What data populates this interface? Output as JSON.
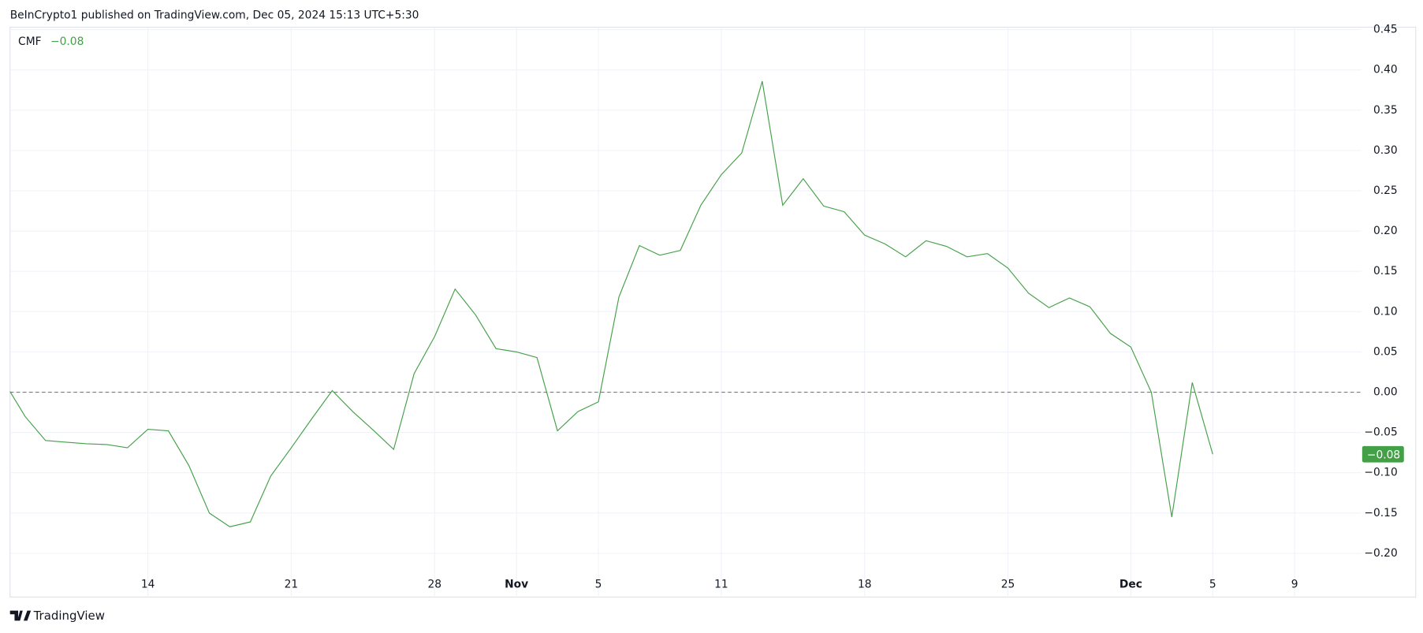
{
  "header": {
    "text": "BeInCrypto1 published on TradingView.com, Dec 05, 2024 15:13 UTC+5:30"
  },
  "footer": {
    "brand": "TradingView"
  },
  "chart_data": {
    "type": "line",
    "x": [
      "10-07",
      "10-08",
      "10-09",
      "10-10",
      "10-11",
      "10-12",
      "10-13",
      "10-14",
      "10-15",
      "10-16",
      "10-17",
      "10-18",
      "10-19",
      "10-20",
      "10-21",
      "10-22",
      "10-23",
      "10-24",
      "10-25",
      "10-26",
      "10-27",
      "10-28",
      "10-29",
      "10-30",
      "10-31",
      "11-01",
      "11-02",
      "11-03",
      "11-04",
      "11-05",
      "11-06",
      "11-07",
      "11-08",
      "11-09",
      "11-10",
      "11-11",
      "11-12",
      "11-13",
      "11-14",
      "11-15",
      "11-16",
      "11-17",
      "11-18",
      "11-19",
      "11-20",
      "11-21",
      "11-22",
      "11-23",
      "11-24",
      "11-25",
      "11-26",
      "11-27",
      "11-28",
      "11-29",
      "11-30",
      "12-01",
      "12-02",
      "12-03",
      "12-04",
      "12-05"
    ],
    "series": [
      {
        "name": "CMF",
        "color": "#43a047",
        "last_label": "−0.08",
        "values": [
          0.012,
          -0.03,
          -0.06,
          -0.062,
          -0.064,
          -0.065,
          -0.069,
          -0.046,
          -0.048,
          -0.091,
          -0.15,
          -0.167,
          -0.161,
          -0.104,
          -0.069,
          -0.033,
          0.002,
          -0.024,
          -0.047,
          -0.071,
          0.023,
          0.069,
          0.128,
          0.096,
          0.054,
          0.05,
          0.043,
          -0.048,
          -0.024,
          -0.012,
          0.118,
          0.182,
          0.17,
          0.176,
          0.232,
          0.27,
          0.297,
          0.386,
          0.232,
          0.265,
          0.231,
          0.224,
          0.195,
          0.184,
          0.168,
          0.188,
          0.181,
          0.168,
          0.172,
          0.154,
          0.123,
          0.105,
          0.117,
          0.106,
          0.073,
          0.056,
          0.0,
          -0.155,
          0.012,
          -0.077
        ]
      }
    ],
    "xlim": [
      "10-07",
      "12-15"
    ],
    "xticks": [
      {
        "value": "10-14",
        "label": "14"
      },
      {
        "value": "10-21",
        "label": "21"
      },
      {
        "value": "10-28",
        "label": "28"
      },
      {
        "value": "11-01",
        "label": "Nov"
      },
      {
        "value": "11-05",
        "label": "5"
      },
      {
        "value": "11-11",
        "label": "11"
      },
      {
        "value": "11-18",
        "label": "18"
      },
      {
        "value": "11-25",
        "label": "25"
      },
      {
        "value": "12-01",
        "label": "Dec"
      },
      {
        "value": "12-05",
        "label": "5"
      },
      {
        "value": "12-09",
        "label": "9"
      }
    ],
    "ylim": [
      -0.225,
      0.453
    ],
    "yticks": [
      0.45,
      {
        "value": 0.4,
        "label": "0.40"
      },
      0.35,
      {
        "value": 0.3,
        "label": "0.30"
      },
      0.25,
      {
        "value": 0.2,
        "label": "0.20"
      },
      0.15,
      {
        "value": 0.1,
        "label": "0.10"
      },
      0.05,
      {
        "value": 0,
        "label": "0.00"
      },
      {
        "value": -0.05,
        "label": "−0.05"
      },
      {
        "value": -0.1,
        "label": "−0.10"
      },
      {
        "value": -0.15,
        "label": "−0.15"
      },
      {
        "value": -0.2,
        "label": "−0.20"
      }
    ],
    "baseline": 0,
    "grid": true
  }
}
